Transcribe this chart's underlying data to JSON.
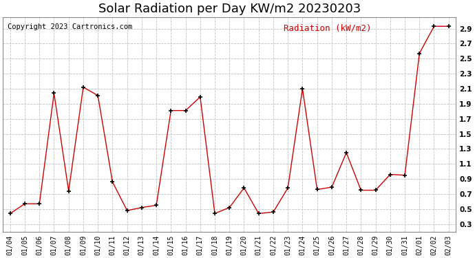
{
  "title": "Solar Radiation per Day KW/m2 20230203",
  "copyright": "Copyright 2023 Cartronics.com",
  "legend_label": "Radiation (kW/m2)",
  "dates": [
    "01/04",
    "01/05",
    "01/06",
    "01/07",
    "01/08",
    "01/09",
    "01/10",
    "01/11",
    "01/12",
    "01/13",
    "01/14",
    "01/15",
    "01/16",
    "01/17",
    "01/18",
    "01/19",
    "01/20",
    "01/21",
    "01/22",
    "01/23",
    "01/24",
    "01/25",
    "01/26",
    "01/27",
    "01/28",
    "01/29",
    "01/30",
    "01/31",
    "02/01",
    "02/02",
    "02/03"
  ],
  "values": [
    0.44,
    0.57,
    0.57,
    2.04,
    0.74,
    2.12,
    2.01,
    0.86,
    0.48,
    0.52,
    0.55,
    1.81,
    1.81,
    1.99,
    0.44,
    0.52,
    0.78,
    0.44,
    0.46,
    0.78,
    2.1,
    0.76,
    0.79,
    1.25,
    0.75,
    0.75,
    0.96,
    0.95,
    2.57,
    2.93,
    2.93
  ],
  "line_color": "#cc0000",
  "marker": "+",
  "marker_color": "#000000",
  "background_color": "#ffffff",
  "grid_color": "#c0c0c0",
  "ylim": [
    0.2,
    3.05
  ],
  "yticks": [
    0.3,
    0.5,
    0.7,
    0.9,
    1.1,
    1.3,
    1.5,
    1.7,
    1.9,
    2.1,
    2.3,
    2.5,
    2.7,
    2.9
  ],
  "title_fontsize": 13,
  "copyright_fontsize": 7.5,
  "legend_fontsize": 9,
  "tick_fontsize": 7
}
